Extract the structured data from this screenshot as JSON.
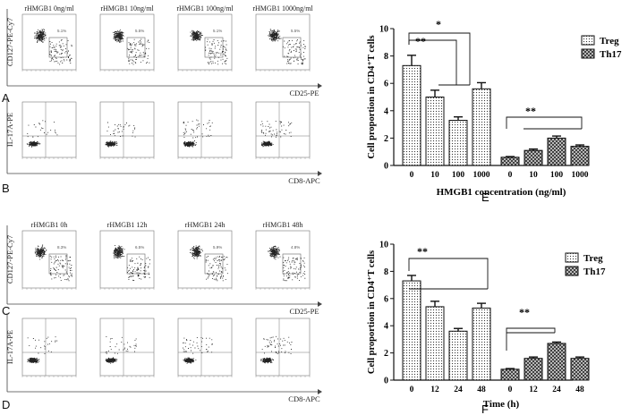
{
  "flow_rows": [
    {
      "panel": "A",
      "titles": [
        "rHMGB1 0ng/ml",
        "rHMGB1 10ng/ml",
        "rHMGB1 100ng/ml",
        "rHMGB1 1000ng/ml"
      ],
      "y_label": "CD127-PE-Cy7",
      "x_label": "CD25-PE",
      "gate_values": [
        "5.1%",
        "5.5%",
        "5.1%",
        "5.5%"
      ]
    },
    {
      "panel": "B",
      "titles": [],
      "y_label": "IL-17A-PE",
      "x_label": "CD8-APC",
      "gate_values": [
        "",
        "",
        "",
        ""
      ]
    },
    {
      "panel": "C",
      "titles": [
        "rHMGB1 0h",
        "rHMGB1 12h",
        "rHMGB1 24h",
        "rHMGB1 48h"
      ],
      "y_label": "CD127-PE-Cy7",
      "x_label": "CD25-PE",
      "gate_values": [
        "8.3%",
        "6.5%",
        "5.9%",
        "4.8%"
      ]
    },
    {
      "panel": "D",
      "titles": [],
      "y_label": "IL-17A-PE",
      "x_label": "CD8-APC",
      "gate_values": [
        "",
        "",
        "",
        ""
      ]
    }
  ],
  "chart_data": [
    {
      "panel": "E",
      "type": "bar",
      "ylabel": "Cell proportion in CD4⁺T cells",
      "xlabel": "HMGB1 concentration (ng/ml)",
      "ylim": [
        0,
        10
      ],
      "yticks": [
        0,
        2,
        4,
        6,
        8,
        10
      ],
      "categories": [
        "0",
        "10",
        "100",
        "1000"
      ],
      "legend_placement": "top-right",
      "series": [
        {
          "name": "Treg",
          "values": [
            7.3,
            5.0,
            3.3,
            5.6
          ],
          "errors": [
            0.75,
            0.5,
            0.25,
            0.45
          ]
        },
        {
          "name": "Th17",
          "values": [
            0.6,
            1.1,
            2.0,
            1.4
          ],
          "errors": [
            0.05,
            0.1,
            0.15,
            0.1
          ]
        }
      ],
      "annotations": [
        "*",
        "**",
        "**"
      ]
    },
    {
      "panel": "F",
      "type": "bar",
      "ylabel": "Cell proportion in CD4⁺T cells",
      "xlabel": "Time (h)",
      "ylim": [
        0,
        10
      ],
      "yticks": [
        0,
        2,
        4,
        6,
        8,
        10
      ],
      "categories": [
        "0",
        "12",
        "24",
        "48"
      ],
      "legend_placement": "top-right",
      "series": [
        {
          "name": "Treg",
          "values": [
            7.3,
            5.4,
            3.6,
            5.3
          ],
          "errors": [
            0.4,
            0.4,
            0.2,
            0.35
          ]
        },
        {
          "name": "Th17",
          "values": [
            0.8,
            1.6,
            2.7,
            1.6
          ],
          "errors": [
            0.05,
            0.1,
            0.1,
            0.1
          ]
        }
      ],
      "annotations": [
        "**",
        "**"
      ]
    }
  ]
}
